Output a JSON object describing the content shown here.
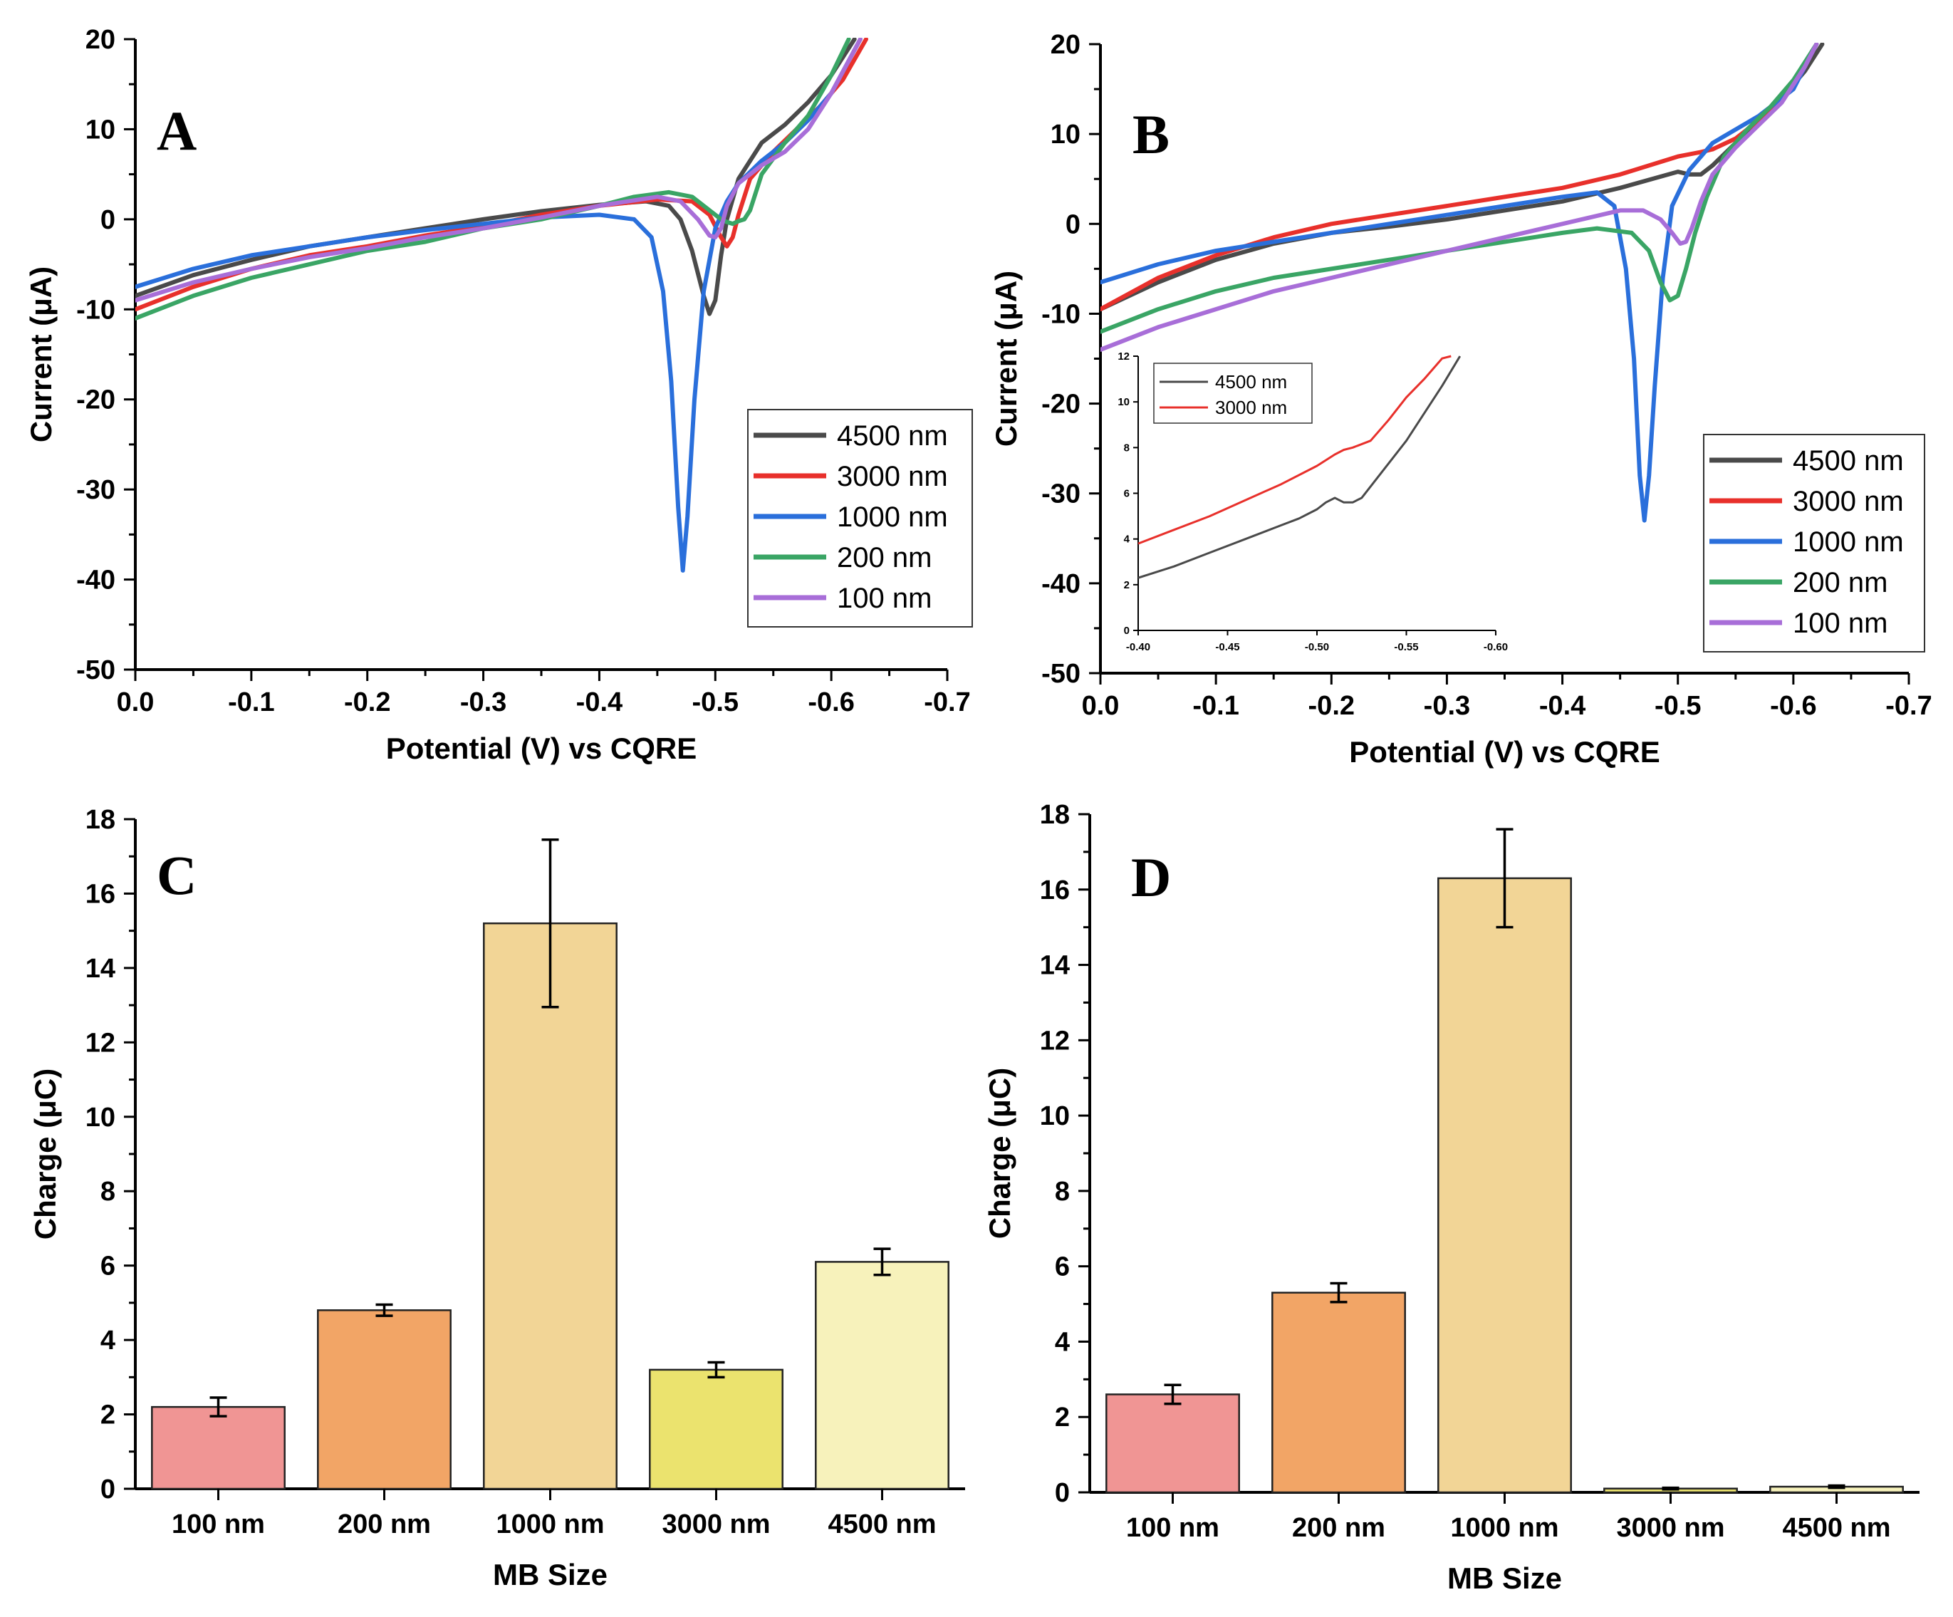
{
  "chart_data": [
    {
      "id": "A",
      "type": "line",
      "panel_label": "A",
      "xlabel": "Potential (V) vs CQRE",
      "ylabel": "Current (μA)",
      "xlim": [
        0.0,
        -0.7
      ],
      "ylim": [
        -50,
        20
      ],
      "xticks": [
        0.0,
        -0.1,
        -0.2,
        -0.3,
        -0.4,
        -0.5,
        -0.6,
        -0.7
      ],
      "xtick_labels": [
        "0.0",
        "-0.1",
        "-0.2",
        "-0.3",
        "-0.4",
        "-0.5",
        "-0.6",
        "-0.7"
      ],
      "yticks": [
        20,
        10,
        0,
        -10,
        -20,
        -30,
        -40,
        -50
      ],
      "ytick_labels": [
        "20",
        "10",
        "0",
        "-10",
        "-20",
        "-30",
        "-40",
        "-50"
      ],
      "legend_position": "lower-right",
      "series": [
        {
          "name": "4500 nm",
          "color": "#4a4a4a",
          "x": [
            0.0,
            -0.05,
            -0.1,
            -0.15,
            -0.2,
            -0.25,
            -0.3,
            -0.35,
            -0.4,
            -0.44,
            -0.46,
            -0.47,
            -0.48,
            -0.49,
            -0.495,
            -0.5,
            -0.505,
            -0.51,
            -0.52,
            -0.54,
            -0.56,
            -0.58,
            -0.6,
            -0.62
          ],
          "y": [
            -8.5,
            -6.2,
            -4.5,
            -3.0,
            -2.0,
            -1.0,
            0.0,
            0.9,
            1.6,
            2.0,
            1.5,
            0.0,
            -3.5,
            -8.5,
            -10.5,
            -9.0,
            -4.0,
            0.0,
            4.5,
            8.5,
            10.5,
            13.0,
            16.0,
            20.0
          ]
        },
        {
          "name": "3000 nm",
          "color": "#e8302b",
          "x": [
            0.0,
            -0.05,
            -0.1,
            -0.15,
            -0.2,
            -0.25,
            -0.3,
            -0.35,
            -0.4,
            -0.45,
            -0.48,
            -0.495,
            -0.505,
            -0.51,
            -0.515,
            -0.52,
            -0.53,
            -0.55,
            -0.57,
            -0.59,
            -0.61,
            -0.63
          ],
          "y": [
            -10.0,
            -7.5,
            -5.5,
            -4.0,
            -3.0,
            -1.8,
            -0.8,
            0.5,
            1.5,
            2.2,
            2.0,
            0.5,
            -2.0,
            -3.0,
            -2.0,
            0.5,
            4.5,
            7.5,
            10.0,
            12.5,
            15.5,
            20.0
          ]
        },
        {
          "name": "1000 nm",
          "color": "#2a6fdb",
          "x": [
            0.0,
            -0.05,
            -0.1,
            -0.15,
            -0.2,
            -0.25,
            -0.3,
            -0.35,
            -0.4,
            -0.43,
            -0.445,
            -0.455,
            -0.462,
            -0.468,
            -0.472,
            -0.476,
            -0.482,
            -0.49,
            -0.5,
            -0.51,
            -0.52,
            -0.54,
            -0.56,
            -0.58,
            -0.6,
            -0.625
          ],
          "y": [
            -7.5,
            -5.5,
            -4.0,
            -3.0,
            -2.0,
            -1.2,
            -0.5,
            0.2,
            0.5,
            0.0,
            -2.0,
            -8.0,
            -18.0,
            -32.0,
            -39.0,
            -33.0,
            -20.0,
            -8.0,
            -1.0,
            2.0,
            4.0,
            6.5,
            8.5,
            11.0,
            14.0,
            20.0
          ]
        },
        {
          "name": "200 nm",
          "color": "#3aa565",
          "x": [
            0.0,
            -0.05,
            -0.1,
            -0.15,
            -0.2,
            -0.25,
            -0.3,
            -0.35,
            -0.4,
            -0.43,
            -0.46,
            -0.48,
            -0.495,
            -0.505,
            -0.51,
            -0.515,
            -0.52,
            -0.525,
            -0.53,
            -0.54,
            -0.56,
            -0.58,
            -0.6,
            -0.615
          ],
          "y": [
            -11.0,
            -8.5,
            -6.5,
            -5.0,
            -3.5,
            -2.5,
            -1.0,
            0.0,
            1.5,
            2.5,
            3.0,
            2.5,
            1.0,
            0.0,
            -0.3,
            -0.5,
            -0.2,
            0.0,
            1.0,
            5.0,
            8.5,
            11.5,
            16.0,
            20.0
          ]
        },
        {
          "name": "100 nm",
          "color": "#a86ed8",
          "x": [
            0.0,
            -0.05,
            -0.1,
            -0.15,
            -0.2,
            -0.25,
            -0.3,
            -0.35,
            -0.4,
            -0.45,
            -0.47,
            -0.485,
            -0.495,
            -0.5,
            -0.505,
            -0.51,
            -0.52,
            -0.54,
            -0.56,
            -0.58,
            -0.6,
            -0.625
          ],
          "y": [
            -9.0,
            -7.0,
            -5.5,
            -4.2,
            -3.2,
            -2.0,
            -1.0,
            0.2,
            1.5,
            2.5,
            2.0,
            0.0,
            -1.8,
            -2.0,
            -1.0,
            1.5,
            4.0,
            6.0,
            7.5,
            10.0,
            14.0,
            20.0
          ]
        }
      ]
    },
    {
      "id": "B",
      "type": "line",
      "panel_label": "B",
      "xlabel": "Potential (V) vs CQRE",
      "ylabel": "Current (μA)",
      "xlim": [
        0.0,
        -0.7
      ],
      "ylim": [
        -50,
        20
      ],
      "xticks": [
        0.0,
        -0.1,
        -0.2,
        -0.3,
        -0.4,
        -0.5,
        -0.6,
        -0.7
      ],
      "xtick_labels": [
        "0.0",
        "-0.1",
        "-0.2",
        "-0.3",
        "-0.4",
        "-0.5",
        "-0.6",
        "-0.7"
      ],
      "yticks": [
        20,
        10,
        0,
        -10,
        -20,
        -30,
        -40,
        -50
      ],
      "ytick_labels": [
        "20",
        "10",
        "0",
        "-10",
        "-20",
        "-30",
        "-40",
        "-50"
      ],
      "legend_position": "lower-right",
      "series": [
        {
          "name": "4500 nm",
          "color": "#4a4a4a",
          "x": [
            0.0,
            -0.05,
            -0.1,
            -0.15,
            -0.2,
            -0.25,
            -0.3,
            -0.35,
            -0.4,
            -0.45,
            -0.5,
            -0.51,
            -0.52,
            -0.53,
            -0.55,
            -0.57,
            -0.59,
            -0.61,
            -0.625
          ],
          "y": [
            -9.5,
            -6.5,
            -4.0,
            -2.2,
            -1.0,
            -0.3,
            0.5,
            1.5,
            2.5,
            4.0,
            5.8,
            5.5,
            5.5,
            6.5,
            9.0,
            11.5,
            14.0,
            17.0,
            20.0
          ]
        },
        {
          "name": "3000 nm",
          "color": "#e8302b",
          "x": [
            0.0,
            -0.05,
            -0.1,
            -0.15,
            -0.2,
            -0.25,
            -0.3,
            -0.35,
            -0.4,
            -0.45,
            -0.5,
            -0.52,
            -0.53,
            -0.55,
            -0.57,
            -0.59,
            -0.61,
            -0.62
          ],
          "y": [
            -9.5,
            -6.0,
            -3.5,
            -1.5,
            0.0,
            1.0,
            2.0,
            3.0,
            4.0,
            5.5,
            7.5,
            8.0,
            8.3,
            9.5,
            11.5,
            14.0,
            17.5,
            20.0
          ]
        },
        {
          "name": "1000 nm",
          "color": "#2a6fdb",
          "x": [
            0.0,
            -0.05,
            -0.1,
            -0.15,
            -0.2,
            -0.25,
            -0.3,
            -0.35,
            -0.4,
            -0.43,
            -0.445,
            -0.455,
            -0.462,
            -0.467,
            -0.471,
            -0.475,
            -0.48,
            -0.487,
            -0.495,
            -0.51,
            -0.53,
            -0.55,
            -0.57,
            -0.6,
            -0.62
          ],
          "y": [
            -6.5,
            -4.5,
            -3.0,
            -2.0,
            -1.0,
            0.0,
            1.0,
            2.0,
            3.0,
            3.5,
            2.0,
            -5.0,
            -15.0,
            -28.0,
            -33.0,
            -28.0,
            -18.0,
            -6.0,
            2.0,
            6.0,
            9.0,
            10.5,
            12.0,
            15.0,
            20.0
          ]
        },
        {
          "name": "200 nm",
          "color": "#3aa565",
          "x": [
            0.0,
            -0.05,
            -0.1,
            -0.15,
            -0.2,
            -0.25,
            -0.3,
            -0.35,
            -0.4,
            -0.43,
            -0.46,
            -0.475,
            -0.485,
            -0.493,
            -0.5,
            -0.507,
            -0.515,
            -0.525,
            -0.54,
            -0.56,
            -0.58,
            -0.6,
            -0.62
          ],
          "y": [
            -12.0,
            -9.5,
            -7.5,
            -6.0,
            -5.0,
            -4.0,
            -3.0,
            -2.0,
            -1.0,
            -0.5,
            -1.0,
            -3.0,
            -6.5,
            -8.5,
            -8.0,
            -5.0,
            -1.0,
            3.0,
            7.5,
            10.5,
            13.0,
            16.0,
            20.0
          ]
        },
        {
          "name": "100 nm",
          "color": "#a86ed8",
          "x": [
            0.0,
            -0.05,
            -0.1,
            -0.15,
            -0.2,
            -0.25,
            -0.3,
            -0.35,
            -0.4,
            -0.45,
            -0.47,
            -0.485,
            -0.495,
            -0.502,
            -0.507,
            -0.512,
            -0.52,
            -0.53,
            -0.55,
            -0.57,
            -0.59,
            -0.61,
            -0.62
          ],
          "y": [
            -14.0,
            -11.5,
            -9.5,
            -7.5,
            -6.0,
            -4.5,
            -3.0,
            -1.5,
            0.0,
            1.5,
            1.5,
            0.5,
            -1.0,
            -2.2,
            -2.0,
            -0.5,
            2.5,
            5.5,
            8.5,
            11.0,
            13.5,
            17.5,
            20.0
          ]
        }
      ],
      "inset": {
        "xlim": [
          -0.4,
          -0.6
        ],
        "ylim": [
          0,
          12
        ],
        "xticks": [
          -0.4,
          -0.45,
          -0.5,
          -0.55,
          -0.6
        ],
        "xtick_labels": [
          "-0.40",
          "-0.45",
          "-0.50",
          "-0.55",
          "-0.60"
        ],
        "yticks": [
          0,
          2,
          4,
          6,
          8,
          10,
          12
        ],
        "ytick_labels": [
          "0",
          "2",
          "4",
          "6",
          "8",
          "10",
          "12"
        ],
        "legend_position": "top-left",
        "series": [
          {
            "name": "4500 nm",
            "color": "#4a4a4a",
            "x": [
              -0.4,
              -0.42,
              -0.44,
              -0.46,
              -0.48,
              -0.49,
              -0.5,
              -0.505,
              -0.51,
              -0.515,
              -0.52,
              -0.525,
              -0.53,
              -0.54,
              -0.55,
              -0.56,
              -0.57,
              -0.58
            ],
            "y": [
              2.3,
              2.8,
              3.4,
              4.0,
              4.6,
              4.9,
              5.3,
              5.6,
              5.8,
              5.6,
              5.6,
              5.8,
              6.3,
              7.3,
              8.3,
              9.5,
              10.7,
              12.0
            ]
          },
          {
            "name": "3000 nm",
            "color": "#e8302b",
            "x": [
              -0.4,
              -0.42,
              -0.44,
              -0.46,
              -0.48,
              -0.5,
              -0.51,
              -0.515,
              -0.52,
              -0.53,
              -0.54,
              -0.55,
              -0.56,
              -0.57,
              -0.575
            ],
            "y": [
              3.8,
              4.4,
              5.0,
              5.7,
              6.4,
              7.2,
              7.7,
              7.9,
              8.0,
              8.3,
              9.2,
              10.2,
              11.0,
              11.9,
              12.0
            ]
          }
        ]
      }
    },
    {
      "id": "C",
      "type": "bar",
      "panel_label": "C",
      "xlabel": "MB Size",
      "ylabel": "Charge (μC)",
      "ylim": [
        0,
        18
      ],
      "yticks": [
        0,
        2,
        4,
        6,
        8,
        10,
        12,
        14,
        16,
        18
      ],
      "ytick_labels": [
        "0",
        "2",
        "4",
        "6",
        "8",
        "10",
        "12",
        "14",
        "16",
        "18"
      ],
      "categories": [
        "100 nm",
        "200 nm",
        "1000 nm",
        "3000 nm",
        "4500 nm"
      ],
      "values": [
        2.2,
        4.8,
        15.2,
        3.2,
        6.1
      ],
      "errors": [
        0.25,
        0.15,
        2.25,
        0.2,
        0.35
      ],
      "colors": [
        "#f09594",
        "#f2a566",
        "#f2d596",
        "#ebe36e",
        "#f7f2bb"
      ]
    },
    {
      "id": "D",
      "type": "bar",
      "panel_label": "D",
      "xlabel": "MB Size",
      "ylabel": "Charge (μC)",
      "ylim": [
        0,
        18
      ],
      "yticks": [
        0,
        2,
        4,
        6,
        8,
        10,
        12,
        14,
        16,
        18
      ],
      "ytick_labels": [
        "0",
        "2",
        "4",
        "6",
        "8",
        "10",
        "12",
        "14",
        "16",
        "18"
      ],
      "categories": [
        "100 nm",
        "200 nm",
        "1000 nm",
        "3000 nm",
        "4500 nm"
      ],
      "values": [
        2.6,
        5.3,
        16.3,
        0.1,
        0.15
      ],
      "errors": [
        0.25,
        0.25,
        1.3,
        0.02,
        0.03
      ],
      "colors": [
        "#f09594",
        "#f2a566",
        "#f2d596",
        "#ebe36e",
        "#f7f2bb"
      ]
    }
  ]
}
